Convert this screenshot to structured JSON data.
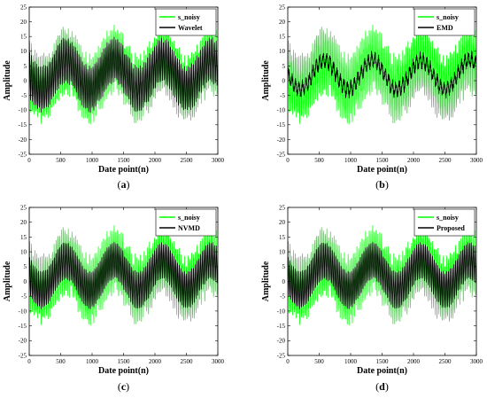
{
  "chart_data": [
    {
      "type": "line",
      "caption": "a",
      "xlabel": "Date point(n)",
      "ylabel": "Amplitude",
      "xlim": [
        0,
        3000
      ],
      "ylim": [
        -25,
        25
      ],
      "x_ticks": [
        0,
        500,
        1000,
        1500,
        2000,
        2500,
        3000
      ],
      "y_ticks": [
        -25,
        -20,
        -15,
        -10,
        -5,
        0,
        5,
        10,
        15,
        20,
        25
      ],
      "grid": false,
      "legend_position": "top-right",
      "series": [
        {
          "name": "s_noisy",
          "color": "#00ff00",
          "kind": "noisy",
          "period": 770,
          "amplitude": 5,
          "noise_amplitude": 9.5
        },
        {
          "name": "Wavelet",
          "color": "#000000",
          "kind": "wavelet",
          "period": 770,
          "amplitude": 5,
          "noise_amplitude": 7
        }
      ]
    },
    {
      "type": "line",
      "caption": "b",
      "xlabel": "Date point(n)",
      "ylabel": "Amplitude",
      "xlim": [
        0,
        3000
      ],
      "ylim": [
        -25,
        25
      ],
      "x_ticks": [
        0,
        500,
        1000,
        1500,
        2000,
        2500,
        3000
      ],
      "y_ticks": [
        -25,
        -20,
        -15,
        -10,
        -5,
        0,
        5,
        10,
        15,
        20,
        25
      ],
      "grid": false,
      "legend_position": "top-right",
      "series": [
        {
          "name": "s_noisy",
          "color": "#00ff00",
          "kind": "noisy",
          "period": 770,
          "amplitude": 5,
          "noise_amplitude": 9.5
        },
        {
          "name": "EMD",
          "color": "#000000",
          "kind": "emd",
          "period": 770,
          "amplitude": 5,
          "noise_amplitude": 2
        }
      ]
    },
    {
      "type": "line",
      "caption": "c",
      "xlabel": "Date point(n)",
      "ylabel": "Amplitude",
      "xlim": [
        0,
        3000
      ],
      "ylim": [
        -25,
        25
      ],
      "x_ticks": [
        0,
        500,
        1000,
        1500,
        2000,
        2500,
        3000
      ],
      "y_ticks": [
        -25,
        -20,
        -15,
        -10,
        -5,
        0,
        5,
        10,
        15,
        20,
        25
      ],
      "grid": false,
      "legend_position": "top-right",
      "series": [
        {
          "name": "s_noisy",
          "color": "#00ff00",
          "kind": "noisy",
          "period": 770,
          "amplitude": 5,
          "noise_amplitude": 9.5
        },
        {
          "name": "NVMD",
          "color": "#000000",
          "kind": "smooth",
          "period": 770,
          "amplitude": 5,
          "noise_amplitude": 6
        }
      ]
    },
    {
      "type": "line",
      "caption": "d",
      "xlabel": "Date point(n)",
      "ylabel": "Amplitude",
      "xlim": [
        0,
        3000
      ],
      "ylim": [
        -25,
        25
      ],
      "x_ticks": [
        0,
        500,
        1000,
        1500,
        2000,
        2500,
        3000
      ],
      "y_ticks": [
        -25,
        -20,
        -15,
        -10,
        -5,
        0,
        5,
        10,
        15,
        20,
        25
      ],
      "grid": false,
      "legend_position": "top-right",
      "series": [
        {
          "name": "s_noisy",
          "color": "#00ff00",
          "kind": "noisy",
          "period": 770,
          "amplitude": 5,
          "noise_amplitude": 9.5
        },
        {
          "name": "Proposed",
          "color": "#000000",
          "kind": "smooth",
          "period": 770,
          "amplitude": 5,
          "noise_amplitude": 6
        }
      ]
    }
  ]
}
